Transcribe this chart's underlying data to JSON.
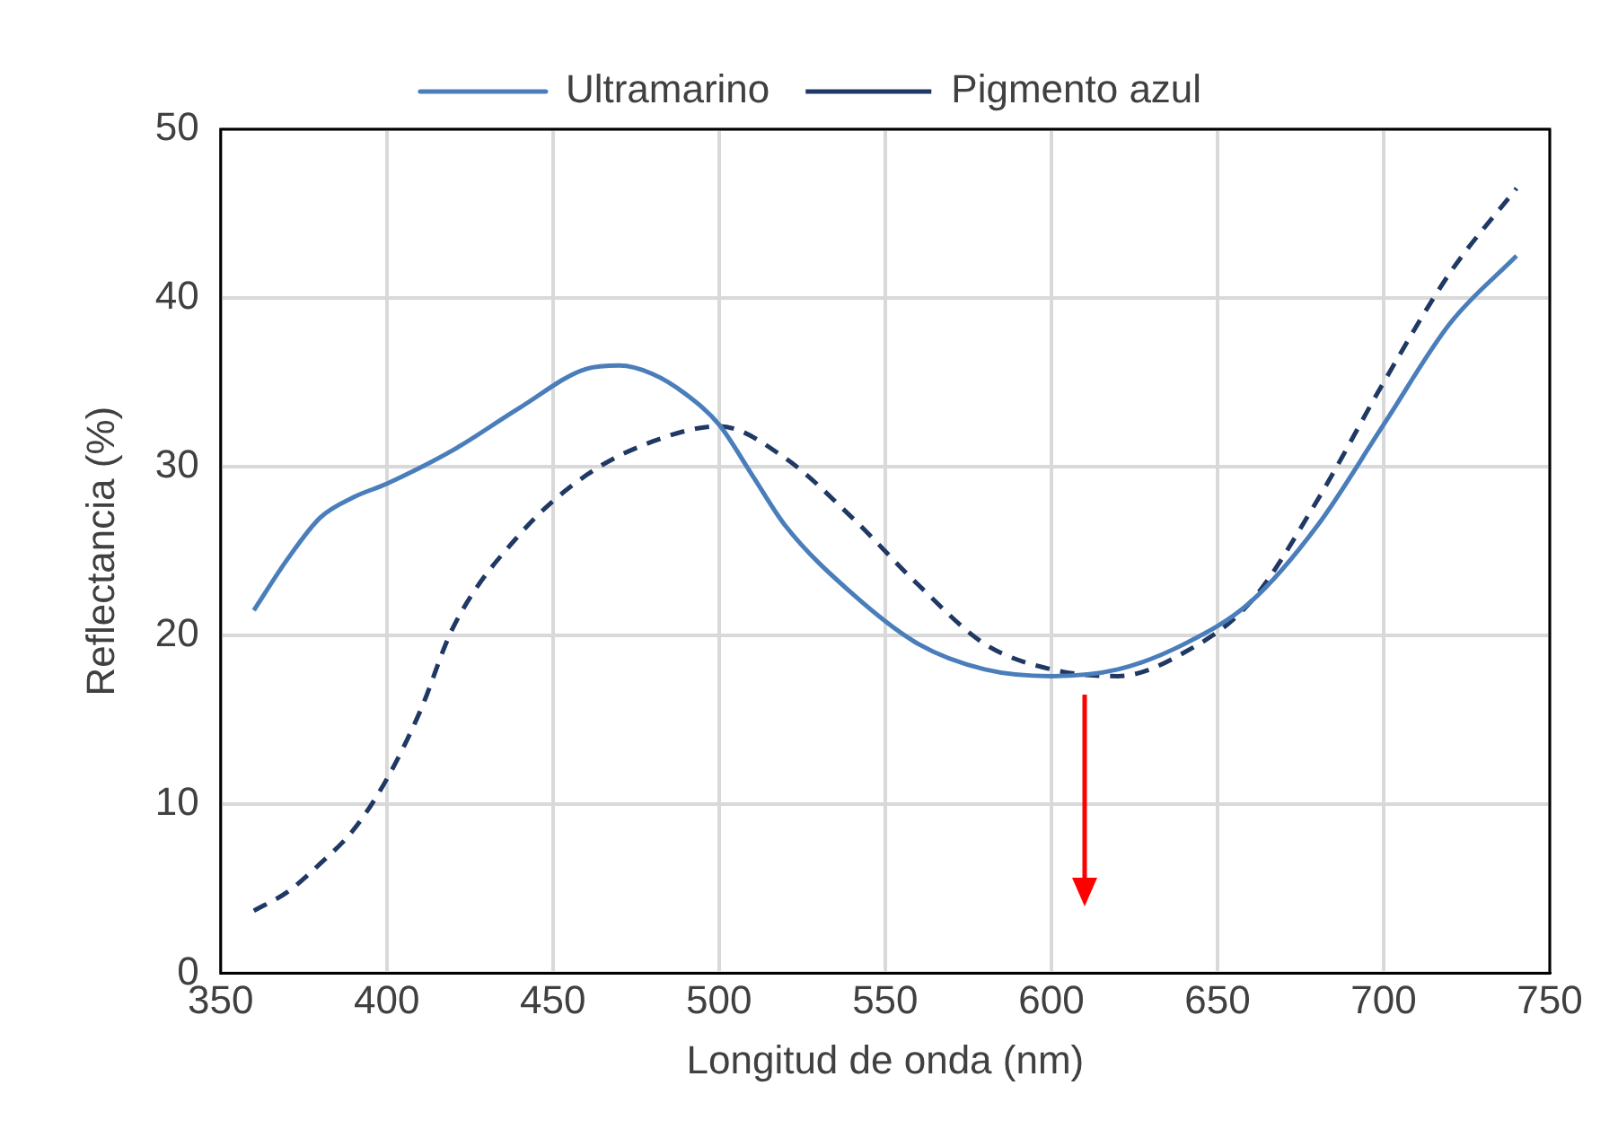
{
  "chart_data": {
    "type": "line",
    "xlabel": "Longitud de onda (nm)",
    "ylabel": "Reflectancia (%)",
    "xlim": [
      350,
      750
    ],
    "xticks": [
      350,
      400,
      450,
      500,
      550,
      600,
      650,
      700,
      750
    ],
    "ylim": [
      0,
      50
    ],
    "yticks": [
      0,
      10,
      20,
      30,
      40,
      50
    ],
    "grid": true,
    "legend": "top",
    "marker": "none",
    "series": [
      {
        "name": "Ultramarino",
        "color": "#4a7ebb",
        "line_style": "solid",
        "x": [
          360,
          370,
          380,
          390,
          400,
          420,
          440,
          460,
          470,
          480,
          490,
          500,
          510,
          520,
          540,
          560,
          580,
          600,
          620,
          640,
          660,
          680,
          700,
          720,
          740
        ],
        "values": [
          21.5,
          24.5,
          27,
          28.2,
          29,
          31,
          33.5,
          35.8,
          36,
          35.5,
          34.3,
          32.5,
          29.5,
          26.5,
          22.5,
          19.5,
          18,
          17.6,
          18,
          19.5,
          22,
          26.5,
          32.5,
          38.5,
          42.5
        ]
      },
      {
        "name": "Pigmento azul",
        "color": "#1f3864",
        "line_style": "dashed",
        "x": [
          360,
          370,
          380,
          390,
          400,
          410,
          420,
          440,
          460,
          480,
          500,
          520,
          540,
          560,
          580,
          600,
          620,
          640,
          660,
          680,
          700,
          720,
          740
        ],
        "values": [
          3.7,
          4.8,
          6.5,
          8.5,
          11.5,
          15.5,
          20.5,
          26,
          29.5,
          31.5,
          32.4,
          30.5,
          27,
          23,
          19.5,
          18,
          17.6,
          19,
          22,
          28,
          35,
          41.5,
          46.5
        ]
      }
    ]
  }
}
